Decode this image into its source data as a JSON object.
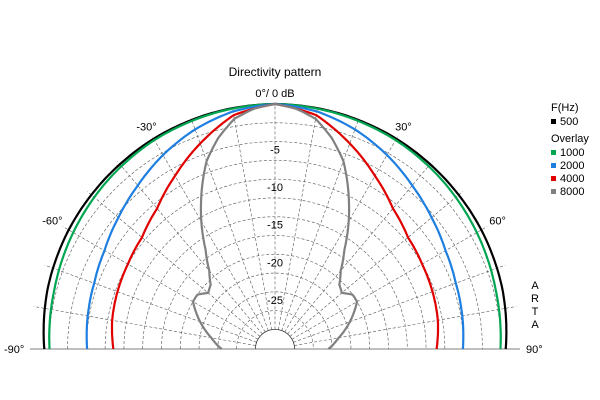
{
  "chart_data": {
    "type": "polar",
    "title": "Directivity pattern",
    "top_label": "0°/ 0 dB",
    "angle_range": [
      -90,
      90
    ],
    "angle_ticks": [
      {
        "deg": -90,
        "label": "-90°"
      },
      {
        "deg": -60,
        "label": "-60°"
      },
      {
        "deg": -30,
        "label": "-30°"
      },
      {
        "deg": 30,
        "label": "30°"
      },
      {
        "deg": 60,
        "label": "60°"
      },
      {
        "deg": 90,
        "label": "90°"
      }
    ],
    "r_range_db": [
      -30,
      0
    ],
    "r_ticks": [
      {
        "db": -5,
        "label": "-5"
      },
      {
        "db": -10,
        "label": "-10"
      },
      {
        "db": -15,
        "label": "-15"
      },
      {
        "db": -20,
        "label": "-20"
      },
      {
        "db": -25,
        "label": "-25"
      }
    ],
    "grid": true,
    "legend_position": "right",
    "legend": {
      "header": "F(Hz)",
      "base": {
        "label": "500",
        "color": "#000000"
      },
      "overlay_header": "Overlay",
      "overlays": [
        {
          "label": "1000",
          "color": "#00a651"
        },
        {
          "label": "2000",
          "color": "#1e7fe0"
        },
        {
          "label": "4000",
          "color": "#e00000"
        },
        {
          "label": "8000",
          "color": "#808080"
        }
      ]
    },
    "series": [
      {
        "name": "500",
        "color": "#000000",
        "angles": [
          0,
          15,
          30,
          45,
          60,
          75,
          90
        ],
        "db": [
          0,
          -0.1,
          -0.3,
          -0.6,
          -0.9,
          -1.3,
          -1.9
        ]
      },
      {
        "name": "1000",
        "color": "#00a651",
        "angles": [
          0,
          15,
          30,
          45,
          60,
          75,
          90
        ],
        "db": [
          0,
          -0.2,
          -0.5,
          -1.0,
          -1.6,
          -2.2,
          -2.6
        ]
      },
      {
        "name": "2000",
        "color": "#1e7fe0",
        "angles": [
          0,
          10,
          20,
          30,
          40,
          50,
          60,
          70,
          80,
          90
        ],
        "db": [
          0,
          -0.5,
          -1.5,
          -2.8,
          -4.2,
          -5.4,
          -6.4,
          -7.0,
          -7.3,
          -7.6
        ]
      },
      {
        "name": "4000",
        "color": "#e00000",
        "angles": [
          0,
          10,
          20,
          30,
          40,
          50,
          60,
          70,
          80,
          90
        ],
        "db": [
          0,
          -1.0,
          -3.5,
          -6.0,
          -8.2,
          -9.5,
          -10.0,
          -10.3,
          -10.6,
          -11.1
        ]
      },
      {
        "name": "8000",
        "color": "#808080",
        "angles": [
          0,
          5,
          10,
          15,
          20,
          25,
          30,
          35,
          40,
          45,
          50,
          55,
          60,
          70,
          80,
          90
        ],
        "db": [
          0,
          -0.5,
          -1.5,
          -3.5,
          -6.0,
          -9.5,
          -13.0,
          -16.5,
          -19.0,
          -20.5,
          -21.0,
          -20.0,
          -20.0,
          -22.0,
          -24.0,
          -25.5
        ]
      }
    ]
  },
  "arta_label": "ARTA"
}
